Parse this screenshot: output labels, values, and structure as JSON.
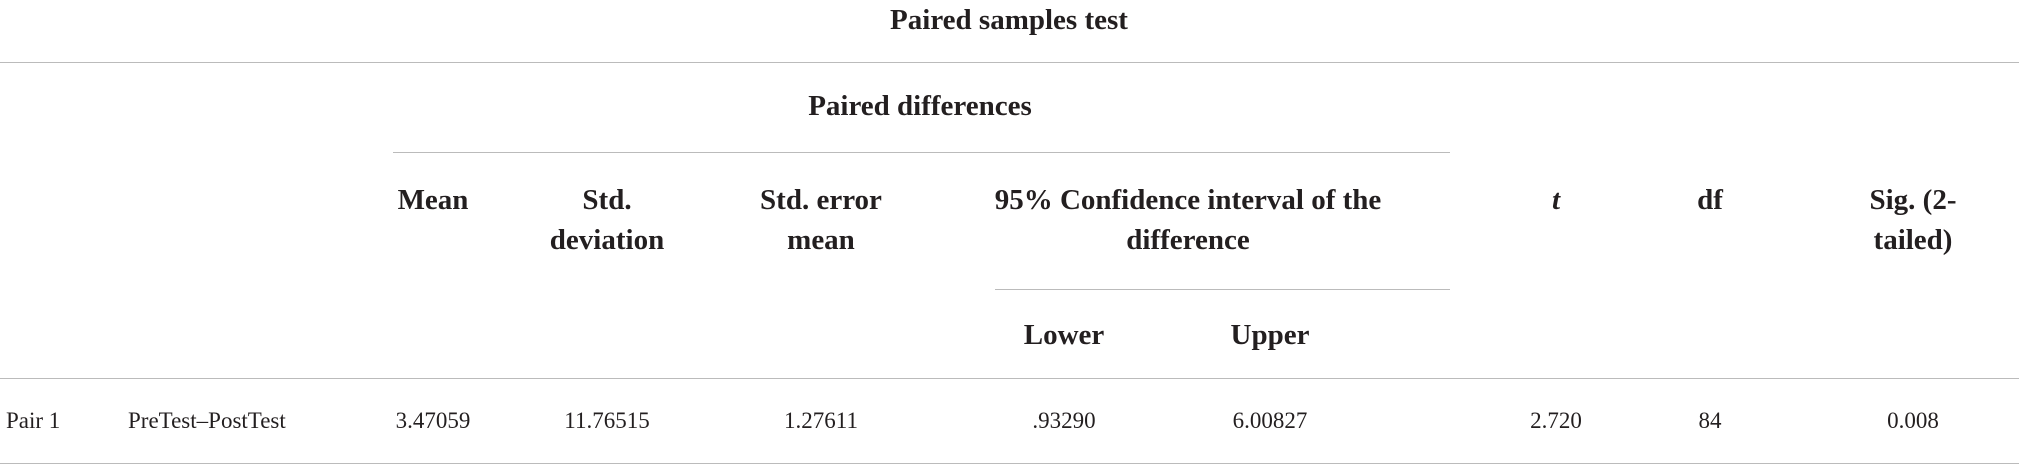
{
  "title": "Paired samples test",
  "header": {
    "group": "Paired differences",
    "columns": [
      "Mean",
      "Std. deviation",
      "Std. error mean",
      "95% Confidence interval of the difference",
      "t",
      "df",
      "Sig. (2-tailed)"
    ],
    "subcolumns": [
      "Lower",
      "Upper"
    ]
  },
  "rows": [
    [
      "Pair 1",
      "PreTest–PostTest",
      "3.47059",
      "11.76515",
      "1.27611",
      ".93290",
      "6.00827",
      "2.720",
      "84",
      "0.008"
    ]
  ]
}
